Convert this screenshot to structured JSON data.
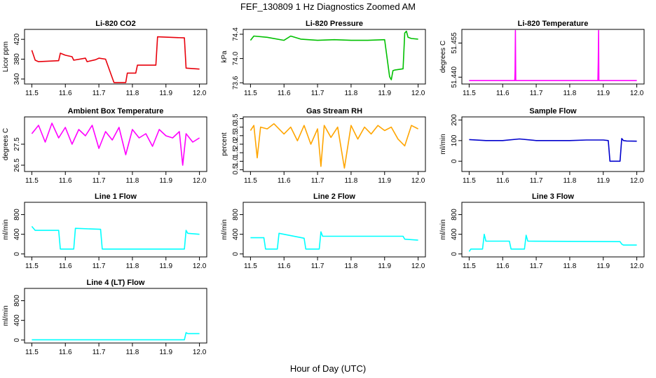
{
  "figure": {
    "title": "FEF_130809  1 Hz Diagnostics Zoomed AM",
    "xlabel": "Hour of Day (UTC)"
  },
  "chart_data": [
    {
      "type": "line",
      "title": "Li-820 CO2",
      "ylabel": "Licor ppm",
      "color": "#e8000b",
      "xlim": [
        11.5,
        12.0
      ],
      "ylim": [
        330,
        440
      ],
      "xticks": [
        "11.5",
        "11.6",
        "11.7",
        "11.8",
        "11.9",
        "12.0"
      ],
      "yticks": [
        "340",
        "380",
        "420"
      ],
      "x": [
        11.5,
        11.51,
        11.52,
        11.58,
        11.585,
        11.6,
        11.62,
        11.625,
        11.66,
        11.665,
        11.69,
        11.7,
        11.72,
        11.745,
        11.75,
        11.78,
        11.785,
        11.81,
        11.815,
        11.84,
        11.845,
        11.87,
        11.875,
        11.955,
        11.96,
        12.0
      ],
      "y": [
        398,
        378,
        375,
        377,
        392,
        388,
        385,
        378,
        382,
        375,
        379,
        382,
        380,
        333,
        333,
        333,
        352,
        352,
        368,
        368,
        368,
        368,
        425,
        423,
        362,
        360
      ]
    },
    {
      "type": "line",
      "title": "Li-820 Pressure",
      "ylabel": "kPa",
      "color": "#00c000",
      "xlim": [
        11.5,
        12.0
      ],
      "ylim": [
        73.58,
        74.48
      ],
      "xticks": [
        "11.5",
        "11.6",
        "11.7",
        "11.8",
        "11.9",
        "12.0"
      ],
      "yticks": [
        "73.6",
        "74.0",
        "74.4"
      ],
      "x": [
        11.5,
        11.51,
        11.55,
        11.6,
        11.62,
        11.65,
        11.7,
        11.75,
        11.8,
        11.85,
        11.9,
        11.915,
        11.92,
        11.925,
        11.93,
        11.955,
        11.96,
        11.965,
        11.97,
        11.98,
        12.0
      ],
      "y": [
        74.3,
        74.37,
        74.35,
        74.3,
        74.37,
        74.32,
        74.3,
        74.31,
        74.3,
        74.3,
        74.31,
        73.7,
        73.65,
        73.8,
        73.81,
        73.83,
        74.42,
        74.45,
        74.35,
        74.33,
        74.32
      ]
    },
    {
      "type": "line",
      "title": "Li-820 Temperature",
      "ylabel": "degrees C",
      "color": "#ff00ff",
      "xlim": [
        11.5,
        12.0
      ],
      "ylim": [
        51.437,
        51.461
      ],
      "xticks": [
        "11.5",
        "11.6",
        "11.7",
        "11.8",
        "11.9",
        "12.0"
      ],
      "yticks": [
        "51.440",
        "51.455"
      ],
      "x": [
        11.5,
        11.636,
        11.637,
        11.638,
        11.639,
        11.64,
        11.884,
        11.885,
        11.886,
        11.887,
        12.0
      ],
      "y": [
        51.4385,
        51.4385,
        51.442,
        51.4605,
        51.4385,
        51.4385,
        51.4385,
        51.4465,
        51.4605,
        51.4385,
        51.4385
      ]
    },
    {
      "type": "line",
      "title": "Ambient Box Temperature",
      "ylabel": "degrees C",
      "color": "#ff00ff",
      "xlim": [
        11.5,
        12.0
      ],
      "ylim": [
        26.2,
        28.8
      ],
      "xticks": [
        "11.5",
        "11.6",
        "11.7",
        "11.8",
        "11.9",
        "12.0"
      ],
      "yticks": [
        "26.5",
        "27.5"
      ],
      "x": [
        11.5,
        11.52,
        11.54,
        11.56,
        11.58,
        11.6,
        11.62,
        11.64,
        11.66,
        11.68,
        11.7,
        11.72,
        11.74,
        11.76,
        11.78,
        11.8,
        11.82,
        11.84,
        11.86,
        11.88,
        11.9,
        11.92,
        11.94,
        11.95,
        11.96,
        11.98,
        12.0
      ],
      "y": [
        28.0,
        28.4,
        27.6,
        28.5,
        27.8,
        28.3,
        27.5,
        28.2,
        27.9,
        28.4,
        27.3,
        28.1,
        27.7,
        28.3,
        27.0,
        28.2,
        27.8,
        28.0,
        27.4,
        28.2,
        27.9,
        27.8,
        28.1,
        26.5,
        28.0,
        27.6,
        27.8
      ]
    },
    {
      "type": "line",
      "title": "Gas Stream RH",
      "ylabel": "percent",
      "color": "#ffa500",
      "xlim": [
        11.5,
        12.0
      ],
      "ylim": [
        0.4,
        3.6
      ],
      "xticks": [
        "11.5",
        "11.6",
        "11.7",
        "11.8",
        "11.9",
        "12.0"
      ],
      "yticks": [
        "0.5",
        "1.0",
        "1.5",
        "2.0",
        "2.5",
        "3.0",
        "3.5"
      ],
      "x": [
        11.5,
        11.51,
        11.52,
        11.53,
        11.55,
        11.57,
        11.6,
        11.62,
        11.64,
        11.66,
        11.68,
        11.7,
        11.71,
        11.72,
        11.74,
        11.76,
        11.78,
        11.8,
        11.82,
        11.84,
        11.86,
        11.88,
        11.9,
        11.92,
        11.94,
        11.96,
        11.98,
        12.0
      ],
      "y": [
        2.8,
        3.1,
        1.2,
        3.0,
        2.9,
        3.2,
        2.6,
        3.0,
        2.2,
        3.1,
        2.0,
        2.9,
        0.7,
        3.1,
        2.4,
        3.0,
        0.6,
        3.1,
        2.3,
        3.0,
        2.6,
        3.1,
        2.8,
        3.0,
        2.3,
        1.9,
        3.1,
        2.9
      ]
    },
    {
      "type": "line",
      "title": "Sample Flow",
      "ylabel": "ml/min",
      "color": "#0000cd",
      "xlim": [
        11.5,
        12.0
      ],
      "ylim": [
        -50,
        215
      ],
      "xticks": [
        "11.5",
        "11.6",
        "11.7",
        "11.8",
        "11.9",
        "12.0"
      ],
      "yticks": [
        "0",
        "100",
        "200"
      ],
      "x": [
        11.5,
        11.55,
        11.6,
        11.65,
        11.7,
        11.75,
        11.8,
        11.85,
        11.9,
        11.915,
        11.92,
        11.95,
        11.955,
        11.96,
        11.97,
        12.0
      ],
      "y": [
        105,
        100,
        100,
        108,
        100,
        100,
        100,
        103,
        103,
        100,
        0,
        0,
        110,
        100,
        98,
        97
      ]
    },
    {
      "type": "line",
      "title": "Line 1 Flow",
      "ylabel": "ml/min",
      "color": "#00ffff",
      "xlim": [
        11.5,
        12.0
      ],
      "ylim": [
        -60,
        1050
      ],
      "xticks": [
        "11.5",
        "11.6",
        "11.7",
        "11.8",
        "11.9",
        "12.0"
      ],
      "yticks": [
        "0",
        "400",
        "800"
      ],
      "x": [
        11.5,
        11.51,
        11.58,
        11.585,
        11.625,
        11.63,
        11.705,
        11.71,
        11.955,
        11.96,
        11.965,
        12.0
      ],
      "y": [
        560,
        480,
        480,
        100,
        100,
        520,
        500,
        100,
        100,
        480,
        420,
        400
      ]
    },
    {
      "type": "line",
      "title": "Line 2 Flow",
      "ylabel": "ml/min",
      "color": "#00ffff",
      "xlim": [
        11.5,
        12.0
      ],
      "ylim": [
        -60,
        1050
      ],
      "xticks": [
        "11.5",
        "11.6",
        "11.7",
        "11.8",
        "11.9",
        "12.0"
      ],
      "yticks": [
        "0",
        "400",
        "800"
      ],
      "x": [
        11.5,
        11.54,
        11.545,
        11.58,
        11.585,
        11.66,
        11.665,
        11.705,
        11.71,
        11.715,
        11.955,
        11.96,
        12.0
      ],
      "y": [
        330,
        330,
        100,
        100,
        420,
        320,
        100,
        100,
        450,
        360,
        360,
        300,
        280
      ]
    },
    {
      "type": "line",
      "title": "Line 3 Flow",
      "ylabel": "ml/min",
      "color": "#00ffff",
      "xlim": [
        11.5,
        12.0
      ],
      "ylim": [
        -60,
        1050
      ],
      "xticks": [
        "11.5",
        "11.6",
        "11.7",
        "11.8",
        "11.9",
        "12.0"
      ],
      "yticks": [
        "0",
        "400",
        "800"
      ],
      "x": [
        11.5,
        11.505,
        11.54,
        11.545,
        11.55,
        11.62,
        11.625,
        11.665,
        11.67,
        11.675,
        11.95,
        11.955,
        11.96,
        12.0
      ],
      "y": [
        50,
        100,
        100,
        400,
        260,
        260,
        100,
        100,
        380,
        260,
        250,
        200,
        180,
        180
      ]
    },
    {
      "type": "line",
      "title": "Line 4 (LT) Flow",
      "ylabel": "ml/min",
      "color": "#00ffff",
      "xlim": [
        11.5,
        12.0
      ],
      "ylim": [
        -60,
        1050
      ],
      "xticks": [
        "11.5",
        "11.6",
        "11.7",
        "11.8",
        "11.9",
        "12.0"
      ],
      "yticks": [
        "0",
        "400",
        "800"
      ],
      "x": [
        11.5,
        11.6,
        11.7,
        11.8,
        11.9,
        11.955,
        11.96,
        11.965,
        12.0
      ],
      "y": [
        5,
        5,
        5,
        5,
        5,
        5,
        150,
        130,
        130
      ]
    }
  ]
}
